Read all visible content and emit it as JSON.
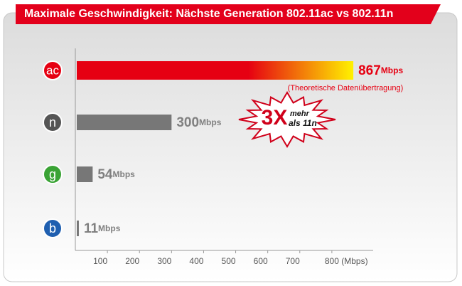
{
  "chart_data": {
    "type": "bar",
    "orientation": "horizontal",
    "title": "Maximale Geschwindigkeit: Nächste Generation 802.11ac vs 802.11n",
    "categories": [
      "ac",
      "n",
      "g",
      "b"
    ],
    "category_colors": [
      "#e60012",
      "#555555",
      "#3aa335",
      "#1f5fb0"
    ],
    "values": [
      867,
      300,
      54,
      11
    ],
    "unit": "Mbps",
    "bar_colors": [
      [
        "#e60012",
        "#e60012",
        "#fff200"
      ],
      "#777777",
      "#777777",
      "#777777"
    ],
    "label_colors": [
      "#e60012",
      "#808080",
      "#808080",
      "#808080"
    ],
    "xlim": [
      0,
      900
    ],
    "xticks": [
      100,
      200,
      300,
      400,
      500,
      600,
      700,
      {
        "value": 800,
        "label": "800 (Mbps)"
      }
    ],
    "note": "(Theoretische Datenübertragung)",
    "badge": {
      "big": "3X",
      "line1": "mehr",
      "line2": "als 11n"
    }
  }
}
